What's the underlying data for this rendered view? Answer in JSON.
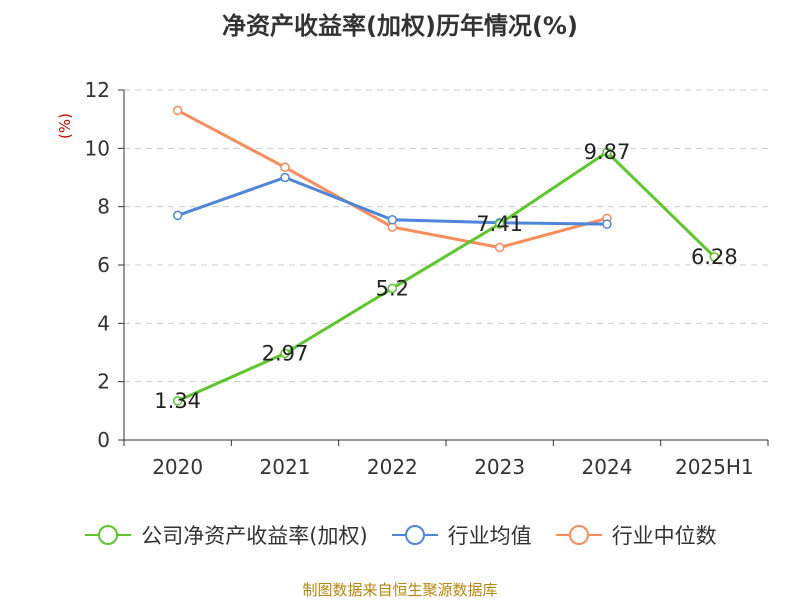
{
  "chart_data": {
    "type": "line",
    "title": "净资产收益率(加权)历年情况(%)",
    "ylabel": "(%)",
    "xlabel": "",
    "categories": [
      "2020",
      "2021",
      "2022",
      "2023",
      "2024",
      "2025H1"
    ],
    "ylim": [
      0,
      12
    ],
    "yticks": [
      0,
      2,
      4,
      6,
      8,
      10,
      12
    ],
    "grid": true,
    "legend_position": "bottom",
    "series": [
      {
        "name": "公司净资产收益率(加权)",
        "color": "#5cc72a",
        "values": [
          1.34,
          2.97,
          5.2,
          7.41,
          9.87,
          6.28
        ],
        "labels": [
          "1.34",
          "2.97",
          "5.2",
          "7.41",
          "9.87",
          "6.28"
        ]
      },
      {
        "name": "行业均值",
        "color": "#4f86dc",
        "values": [
          7.7,
          9.0,
          7.55,
          7.45,
          7.4,
          null
        ]
      },
      {
        "name": "行业中位数",
        "color": "#f68d5b",
        "values": [
          11.3,
          9.35,
          7.3,
          6.6,
          7.6,
          null
        ]
      }
    ]
  },
  "footer": {
    "source": "制图数据来自恒生聚源数据库"
  }
}
